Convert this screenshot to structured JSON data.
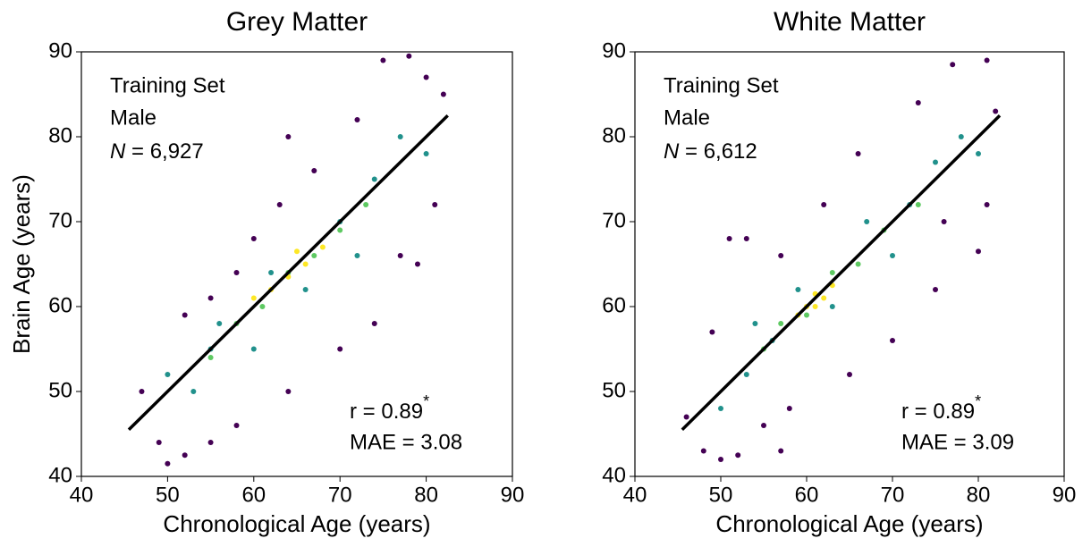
{
  "chart_data": [
    {
      "type": "scatter",
      "title": "Grey Matter",
      "xlabel": "Chronological Age (years)",
      "ylabel": "Brain Age (years)",
      "xlim": [
        40,
        90
      ],
      "ylim": [
        40,
        90
      ],
      "xticks": [
        40,
        50,
        60,
        70,
        80,
        90
      ],
      "yticks": [
        40,
        50,
        60,
        70,
        80,
        90
      ],
      "series": [
        {
          "color": "#440154",
          "x": [
            47,
            49,
            50,
            52,
            55,
            58,
            60,
            63,
            64,
            67,
            72,
            75,
            78,
            80,
            77,
            79,
            74,
            70,
            64,
            58,
            55,
            52,
            81,
            82
          ],
          "y": [
            50,
            44,
            41.5,
            59,
            61,
            64,
            68,
            72,
            80,
            76,
            82,
            89,
            89.5,
            87,
            66,
            65,
            58,
            55,
            50,
            46,
            44,
            42.5,
            72,
            85
          ]
        },
        {
          "color": "#21918c",
          "x": [
            50,
            53,
            56,
            60,
            62,
            66,
            70,
            74,
            77,
            80,
            55,
            72
          ],
          "y": [
            52,
            50,
            58,
            55,
            64,
            62,
            70,
            75,
            80,
            78,
            55,
            66
          ]
        },
        {
          "color": "#5ec962",
          "x": [
            55,
            58,
            61,
            64,
            67,
            70,
            73
          ],
          "y": [
            54,
            58,
            60,
            64,
            66,
            69,
            72
          ]
        },
        {
          "color": "#fde725",
          "x": [
            60,
            62,
            64,
            66,
            68,
            65
          ],
          "y": [
            61,
            62,
            63.5,
            65,
            67,
            66.5
          ]
        }
      ],
      "fit_line": {
        "color": "#000000",
        "x": [
          45.5,
          82.5
        ],
        "y": [
          45.5,
          82.5
        ]
      },
      "annotations": {
        "lines": [
          "Training Set",
          "Male"
        ],
        "n_symbol": "N",
        "n_text": " = 6,927",
        "r_text": "r = 0.89",
        "r_mark": "*",
        "mae_text": "MAE = 3.08"
      }
    },
    {
      "type": "scatter",
      "title": "White Matter",
      "xlabel": "Chronological Age (years)",
      "xlim": [
        40,
        90
      ],
      "ylim": [
        40,
        90
      ],
      "xticks": [
        40,
        50,
        60,
        70,
        80,
        90
      ],
      "yticks": [
        40,
        50,
        60,
        70,
        80,
        90
      ],
      "series": [
        {
          "color": "#440154",
          "x": [
            46,
            48,
            50,
            52,
            49,
            51,
            53,
            57,
            62,
            66,
            73,
            77,
            81,
            82,
            80,
            81,
            75,
            70,
            65,
            58,
            55,
            57,
            76
          ],
          "y": [
            47,
            43,
            42,
            42.5,
            57,
            68,
            68,
            66,
            72,
            78,
            84,
            88.5,
            89,
            83,
            66.5,
            72,
            62,
            56,
            52,
            48,
            46,
            43,
            70
          ]
        },
        {
          "color": "#21918c",
          "x": [
            50,
            53,
            56,
            59,
            63,
            67,
            70,
            75,
            78,
            80,
            54,
            72
          ],
          "y": [
            48,
            52,
            56,
            62,
            60,
            70,
            66,
            77,
            80,
            78,
            58,
            72
          ]
        },
        {
          "color": "#5ec962",
          "x": [
            55,
            57,
            60,
            63,
            66,
            69,
            73
          ],
          "y": [
            55,
            58,
            59,
            64,
            65,
            69,
            72
          ]
        },
        {
          "color": "#fde725",
          "x": [
            59,
            60,
            61,
            62,
            63,
            61
          ],
          "y": [
            59,
            60,
            61.5,
            61,
            62.5,
            60
          ]
        }
      ],
      "fit_line": {
        "color": "#000000",
        "x": [
          45.5,
          82.5
        ],
        "y": [
          45.5,
          82.5
        ]
      },
      "annotations": {
        "lines": [
          "Training Set",
          "Male"
        ],
        "n_symbol": "N",
        "n_text": " = 6,612",
        "r_text": "r = 0.89",
        "r_mark": "*",
        "mae_text": "MAE = 3.09"
      }
    }
  ]
}
